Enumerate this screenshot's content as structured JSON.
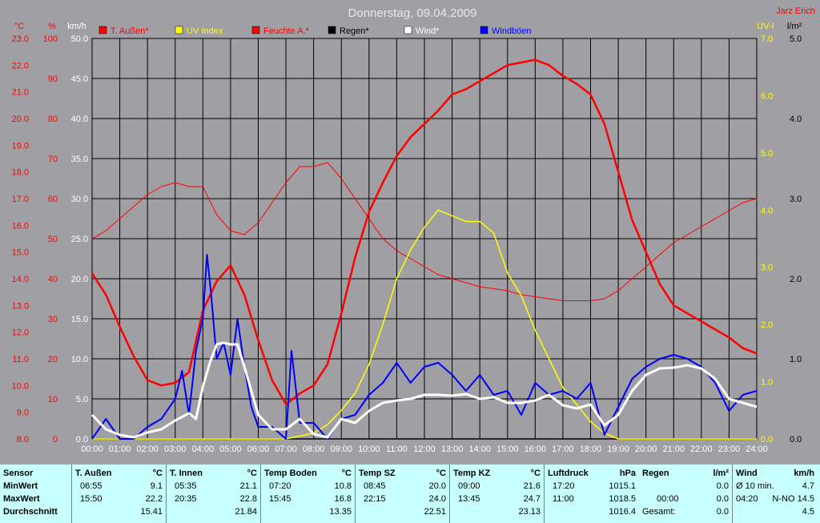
{
  "header": {
    "title": "Donnerstag, 09.04.2009",
    "author": "Jarz Erich"
  },
  "colors": {
    "plot_bg": "#a0a0a4",
    "temp": "#ff0000",
    "uv": "#ffff00",
    "humidity": "#ff0000",
    "rain": "#000000",
    "wind": "#ffffff",
    "gusts": "#0000ff",
    "stats_bg": "#c8ffff",
    "axis_temp": "#ff0000",
    "axis_wind": "#ffffff",
    "axis_uv": "#ffff00",
    "axis_rain": "#000000"
  },
  "axes": {
    "temp_unit": "°C",
    "hum_unit": "%",
    "wind_unit": "km/h",
    "uv_unit": "UV-I",
    "rain_unit": "l/m²",
    "temp_ticks": [
      "23.0",
      "22.0",
      "21.0",
      "20.0",
      "19.0",
      "18.0",
      "17.0",
      "16.0",
      "15.0",
      "14.0",
      "13.0",
      "12.0",
      "11.0",
      "10.0",
      "9.0",
      "8.0"
    ],
    "hum_ticks": [
      "100",
      "90",
      "80",
      "70",
      "60",
      "50",
      "40",
      "30",
      "20",
      "10",
      "0"
    ],
    "wind_ticks": [
      "50.0",
      "45.0",
      "40.0",
      "35.0",
      "30.0",
      "25.0",
      "20.0",
      "15.0",
      "10.0",
      "5.0",
      "0.0"
    ],
    "uv_ticks": [
      "7.0",
      "6.0",
      "5.0",
      "4.0",
      "3.0",
      "2.0",
      "1.0",
      "0.0"
    ],
    "rain_ticks": [
      "5.0",
      "4.0",
      "3.0",
      "2.0",
      "1.0",
      "0.0"
    ],
    "x_ticks": [
      "00:00",
      "01:00",
      "02:00",
      "03:00",
      "04:00",
      "05:00",
      "06:00",
      "07:00",
      "08:00",
      "09:00",
      "10:00",
      "11:00",
      "12:00",
      "13:00",
      "14:00",
      "15:00",
      "16:00",
      "17:00",
      "18:00",
      "19:00",
      "20:00",
      "21:00",
      "22:00",
      "23:00",
      "24:00"
    ]
  },
  "legend": [
    {
      "label": "T. Außen*",
      "color": "#ff0000"
    },
    {
      "label": "UV Index",
      "color": "#ffff00"
    },
    {
      "label": "Feuchte A.*",
      "color": "#ff0000"
    },
    {
      "label": "Regen*",
      "color": "#000000"
    },
    {
      "label": "Wind*",
      "color": "#ffffff"
    },
    {
      "label": "Windböen",
      "color": "#0000ff"
    }
  ],
  "chart_data": {
    "type": "line",
    "title": "Donnerstag, 09.04.2009",
    "xlim": [
      0,
      24
    ],
    "grid": true,
    "legend_position": "top",
    "series": [
      {
        "name": "T. Außen*",
        "axis": "temp",
        "ylim": [
          8,
          23
        ],
        "x": [
          0,
          0.5,
          1,
          1.5,
          2,
          2.5,
          3,
          3.5,
          4,
          4.5,
          5,
          5.5,
          6,
          6.5,
          7,
          7.5,
          8,
          8.5,
          9,
          9.5,
          10,
          10.5,
          11,
          11.5,
          12,
          12.5,
          13,
          13.5,
          14,
          14.5,
          15,
          15.5,
          16,
          16.5,
          17,
          17.5,
          18,
          18.5,
          19,
          19.5,
          20,
          20.5,
          21,
          21.5,
          22,
          22.5,
          23,
          23.5,
          24
        ],
        "y": [
          14.2,
          13.4,
          12.2,
          11.1,
          10.2,
          10.0,
          10.1,
          10.5,
          12.8,
          13.9,
          14.5,
          13.4,
          11.7,
          10.2,
          9.3,
          9.7,
          10.0,
          10.8,
          12.7,
          14.8,
          16.5,
          17.6,
          18.6,
          19.3,
          19.8,
          20.3,
          20.9,
          21.1,
          21.4,
          21.7,
          22.0,
          22.1,
          22.2,
          22.0,
          21.6,
          21.3,
          20.9,
          19.8,
          18.0,
          16.2,
          15.0,
          13.8,
          13.0,
          12.7,
          12.4,
          12.1,
          11.8,
          11.4,
          11.2
        ]
      },
      {
        "name": "Feuchte A.*",
        "axis": "hum",
        "ylim": [
          0,
          100
        ],
        "x": [
          0,
          0.5,
          1,
          1.5,
          2,
          2.5,
          3,
          3.5,
          4,
          4.5,
          5,
          5.5,
          6,
          6.5,
          7,
          7.5,
          8,
          8.5,
          9,
          9.5,
          10,
          10.5,
          11,
          11.5,
          12,
          12.5,
          13,
          13.5,
          14,
          14.5,
          15,
          15.5,
          16,
          16.5,
          17,
          17.5,
          18,
          18.5,
          19,
          19.5,
          20,
          20.5,
          21,
          21.5,
          22,
          22.5,
          23,
          23.5,
          24
        ],
        "y": [
          50,
          52,
          55,
          58,
          61,
          63,
          64,
          63,
          63,
          56,
          52,
          51,
          54,
          59,
          64,
          68,
          68,
          69,
          65,
          60,
          55,
          50,
          47,
          45,
          43,
          41,
          40,
          39,
          38,
          37.5,
          37,
          36,
          35.5,
          35,
          34.5,
          34.5,
          34.5,
          35,
          37,
          40,
          43,
          46,
          49,
          51,
          53,
          55,
          57,
          59,
          60
        ]
      },
      {
        "name": "UV Index",
        "axis": "uv",
        "ylim": [
          0,
          7
        ],
        "x": [
          0,
          6.5,
          7,
          7.5,
          8,
          8.5,
          9,
          9.5,
          10,
          10.5,
          11,
          11.5,
          12,
          12.5,
          13,
          13.5,
          14,
          14.5,
          15,
          15.5,
          16,
          16.5,
          17,
          17.5,
          18,
          18.5,
          19,
          20,
          24
        ],
        "y": [
          0,
          0,
          0,
          0.05,
          0.1,
          0.25,
          0.5,
          0.8,
          1.3,
          2.0,
          2.8,
          3.3,
          3.7,
          4.0,
          3.9,
          3.8,
          3.8,
          3.6,
          2.9,
          2.5,
          1.9,
          1.4,
          0.9,
          0.6,
          0.3,
          0.1,
          0,
          0,
          0
        ]
      },
      {
        "name": "Regen*",
        "axis": "rain",
        "ylim": [
          0,
          5
        ],
        "x": [
          0,
          24
        ],
        "y": [
          0,
          0
        ]
      },
      {
        "name": "Wind*",
        "axis": "wind",
        "ylim": [
          0,
          50
        ],
        "x": [
          0,
          0.5,
          1,
          1.5,
          2,
          2.5,
          3,
          3.5,
          3.75,
          4,
          4.25,
          4.5,
          4.75,
          5,
          5.25,
          5.5,
          5.75,
          6,
          6.5,
          7,
          7.5,
          8,
          8.5,
          9,
          9.5,
          10,
          10.5,
          11,
          11.5,
          12,
          12.5,
          13,
          13.5,
          14,
          14.5,
          15,
          15.5,
          16,
          16.5,
          17,
          17.5,
          18,
          18.5,
          19,
          19.5,
          20,
          20.5,
          21,
          21.5,
          22,
          22.5,
          23,
          23.5,
          24
        ],
        "y": [
          3.0,
          1.2,
          0.5,
          0.2,
          0.8,
          1.2,
          2.3,
          3.2,
          2.5,
          6.5,
          9.5,
          11.8,
          12.0,
          11.8,
          11.8,
          9.0,
          6.0,
          3.0,
          1.2,
          1.2,
          2.5,
          0.6,
          0.2,
          2.5,
          2.0,
          3.5,
          4.5,
          4.8,
          5.0,
          5.5,
          5.5,
          5.4,
          5.6,
          5.0,
          5.2,
          4.5,
          4.5,
          4.8,
          5.5,
          4.2,
          3.8,
          4.3,
          1.7,
          3.0,
          6.0,
          8.0,
          8.8,
          8.9,
          9.2,
          8.8,
          7.5,
          5.0,
          4.5,
          4.0
        ]
      },
      {
        "name": "Windböen",
        "axis": "wind",
        "ylim": [
          0,
          50
        ],
        "x": [
          0,
          0.5,
          1,
          1.5,
          2,
          2.5,
          3,
          3.25,
          3.5,
          3.75,
          4,
          4.15,
          4.3,
          4.5,
          4.75,
          5,
          5.25,
          5.5,
          5.75,
          6,
          6.5,
          7,
          7.2,
          7.5,
          8,
          8.5,
          9,
          9.5,
          10,
          10.5,
          11,
          11.5,
          12,
          12.5,
          13,
          13.5,
          14,
          14.5,
          15,
          15.5,
          16,
          16.5,
          17,
          17.5,
          18,
          18.5,
          19,
          19.5,
          20,
          20.5,
          21,
          21.5,
          22,
          22.5,
          23,
          23.5,
          24
        ],
        "y": [
          0,
          2.5,
          0,
          0,
          1.5,
          2.5,
          5.0,
          8.5,
          3.0,
          11.0,
          15.0,
          23.0,
          18.0,
          10.0,
          12.0,
          8.0,
          15.0,
          9.0,
          4.0,
          1.5,
          1.5,
          0,
          11.0,
          2.0,
          2.0,
          0,
          2.5,
          3.0,
          5.5,
          7.0,
          9.5,
          7.0,
          9.0,
          9.5,
          8.0,
          6.0,
          8.0,
          5.5,
          6.0,
          3.0,
          7.0,
          5.5,
          6.0,
          5.0,
          7.0,
          0.5,
          4.0,
          7.5,
          9.0,
          10.0,
          10.5,
          10.0,
          9.0,
          7.0,
          3.5,
          5.5,
          6.0
        ]
      }
    ]
  },
  "stats": {
    "sensor": {
      "title": "Sensor",
      "rows": [
        "MinWert",
        "MaxWert",
        "Durchschnitt"
      ]
    },
    "columns": [
      {
        "name": "T. Außen",
        "unit": "°C",
        "min_time": "06:55",
        "min_val": "9.1",
        "max_time": "15:50",
        "max_val": "22.2",
        "avg": "15.41"
      },
      {
        "name": "T. Innen",
        "unit": "°C",
        "min_time": "05:35",
        "min_val": "21.1",
        "max_time": "20:35",
        "max_val": "22.8",
        "avg": "21.84"
      },
      {
        "name": "Temp Boden",
        "unit": "°C",
        "min_time": "07:20",
        "min_val": "10.8",
        "max_time": "15:45",
        "max_val": "16.8",
        "avg": "13.35"
      },
      {
        "name": "Temp SZ",
        "unit": "°C",
        "min_time": "08:45",
        "min_val": "20.0",
        "max_time": "22:15",
        "max_val": "24.0",
        "avg": "22.51"
      },
      {
        "name": "Temp KZ",
        "unit": "°C",
        "min_time": "09:00",
        "min_val": "21.6",
        "max_time": "13:45",
        "max_val": "24.7",
        "avg": "23.13"
      },
      {
        "name": "Luftdruck",
        "unit": "hPa",
        "min_time": "17:20",
        "min_val": "1015.1",
        "max_time": "11:00",
        "max_val": "1018.5",
        "avg": "1016.4"
      }
    ],
    "rain": {
      "name": "Regen",
      "unit": "l/m²",
      "r1_label": "",
      "r1_val": "0.0",
      "r2_label": "00:00",
      "r2_val": "0.0",
      "r3_label": "Gesamt:",
      "r3_val": "0.0"
    },
    "wind": {
      "name": "Wind",
      "unit": "km/h",
      "r1_label": "Ø 10 min.",
      "r1_val": "4.7",
      "r2_label": "04:20",
      "r2_dir": "N-NO",
      "r2_val": "14.5",
      "r3_val": "4.5"
    }
  }
}
